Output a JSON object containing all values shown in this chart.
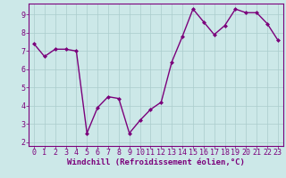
{
  "x": [
    0,
    1,
    2,
    3,
    4,
    5,
    6,
    7,
    8,
    9,
    10,
    11,
    12,
    13,
    14,
    15,
    16,
    17,
    18,
    19,
    20,
    21,
    22,
    23
  ],
  "y": [
    7.4,
    6.7,
    7.1,
    7.1,
    7.0,
    2.5,
    3.9,
    4.5,
    4.4,
    2.5,
    3.2,
    3.8,
    4.2,
    6.4,
    7.8,
    9.3,
    8.6,
    7.9,
    8.4,
    9.3,
    9.1,
    9.1,
    8.5,
    7.6
  ],
  "line_color": "#7b007b",
  "marker": "D",
  "marker_size": 2,
  "bg_color": "#cce8e8",
  "plot_bg_color": "#cce8e8",
  "grid_color": "#aacccc",
  "border_color": "#7b007b",
  "xlabel": "Windchill (Refroidissement éolien,°C)",
  "xlim": [
    -0.5,
    23.5
  ],
  "ylim": [
    1.8,
    9.6
  ],
  "xticks": [
    0,
    1,
    2,
    3,
    4,
    5,
    6,
    7,
    8,
    9,
    10,
    11,
    12,
    13,
    14,
    15,
    16,
    17,
    18,
    19,
    20,
    21,
    22,
    23
  ],
  "yticks": [
    2,
    3,
    4,
    5,
    6,
    7,
    8,
    9
  ],
  "font_color": "#7b007b",
  "xlabel_fontsize": 6.5,
  "tick_fontsize": 6.0,
  "line_width": 1.0
}
